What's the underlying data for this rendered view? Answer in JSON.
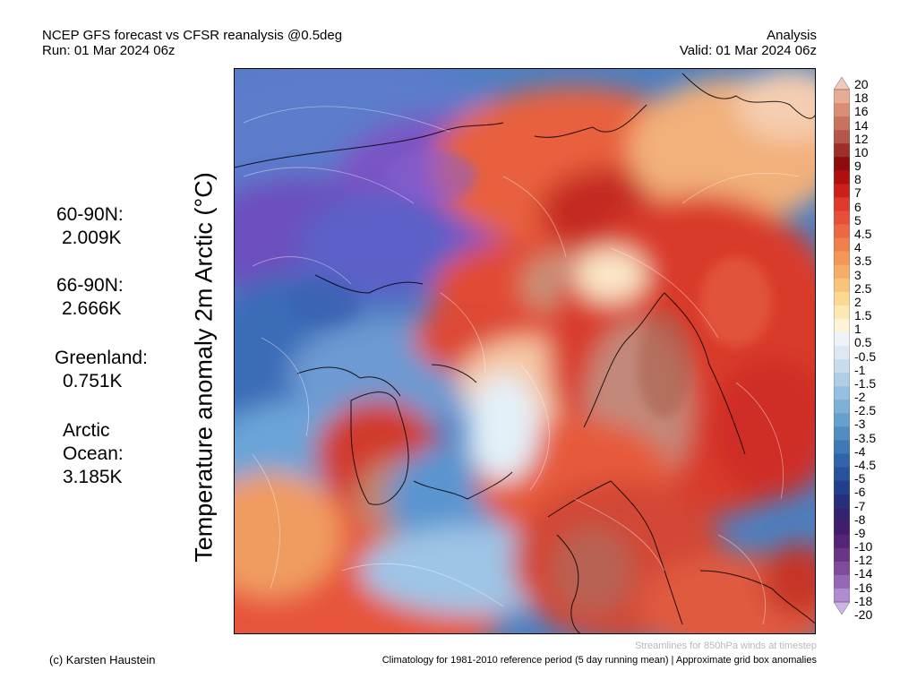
{
  "header": {
    "title_line1": "NCEP GFS forecast vs CFSR reanalysis @0.5deg",
    "title_line2": "Run: 01 Mar 2024 06z",
    "right_line1": "Analysis",
    "right_line2": "Valid: 01 Mar 2024 06z"
  },
  "y_label": "Temperature anomaly 2m Arctic (°C)",
  "stats": [
    {
      "label": "60-90N:",
      "value": "2.009K"
    },
    {
      "label": "66-90N:",
      "value": "2.666K"
    },
    {
      "label": "Greenland:",
      "value": "0.751K"
    },
    {
      "label": "Arctic Ocean:",
      "label_line1": "Arctic",
      "label_line2": "Ocean:",
      "value": "3.185K"
    }
  ],
  "colorbar": {
    "labels": [
      "20",
      "18",
      "16",
      "14",
      "12",
      "10",
      "9",
      "8",
      "7",
      "6",
      "5",
      "4.5",
      "4",
      "3.5",
      "3",
      "2.5",
      "2",
      "1.5",
      "1",
      "0.5",
      "-0.5",
      "-1",
      "-1.5",
      "-2",
      "-2.5",
      "-3",
      "-3.5",
      "-4",
      "-4.5",
      "-5",
      "-6",
      "-7",
      "-8",
      "-9",
      "-10",
      "-12",
      "-14",
      "-16",
      "-18",
      "-20"
    ],
    "colors": [
      "#f2c8b8",
      "#e8ab94",
      "#d98e77",
      "#c87260",
      "#b45648",
      "#9f2f26",
      "#8c0c0c",
      "#b00f10",
      "#cc1f1c",
      "#dd3a2c",
      "#e6503a",
      "#ec6845",
      "#f07f4e",
      "#f39658",
      "#f6ad68",
      "#f8c47c",
      "#fad993",
      "#fbe8b3",
      "#fdf4d8",
      "#eef3f8",
      "#dde8f3",
      "#c7dcee",
      "#afcfe8",
      "#96c0df",
      "#7eb1d6",
      "#67a0cc",
      "#528dc1",
      "#4079b6",
      "#3165a9",
      "#27529c",
      "#223f8c",
      "#272e7c",
      "#33246f",
      "#421d6c",
      "#552476",
      "#6b3586",
      "#7f4b9a",
      "#9667b4",
      "#b08bd0",
      "#cdb3ea"
    ]
  },
  "footer": {
    "credit": "(c) Karsten Haustein",
    "streamlines_note": "Streamlines for 850hPa winds at timestep",
    "climatology_note": "Climatology for 1981-2010 reference period (5 day running mean) | Approximate grid box anomalies"
  }
}
